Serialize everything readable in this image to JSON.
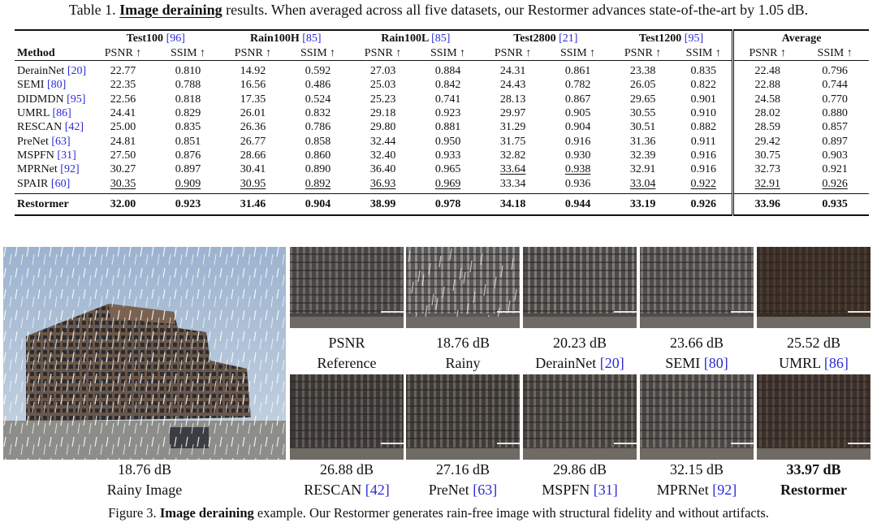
{
  "table_caption": {
    "prefix": "Table 1.",
    "bold": "Image deraining",
    "rest": "results. When averaged across all five datasets, our Restormer advances state-of-the-art by 1.05 dB."
  },
  "table": {
    "method_header": "Method",
    "metric_headers": [
      "PSNR ↑",
      "SSIM ↑"
    ],
    "datasets": [
      {
        "name": "Test100",
        "ref": "[96]"
      },
      {
        "name": "Rain100H",
        "ref": "[85]"
      },
      {
        "name": "Rain100L",
        "ref": "[85]"
      },
      {
        "name": "Test2800",
        "ref": "[21]"
      },
      {
        "name": "Test1200",
        "ref": "[95]"
      },
      {
        "name": "Average",
        "ref": ""
      }
    ],
    "rows": [
      {
        "name": "DerainNet",
        "ref": "[20]",
        "values": [
          "22.77",
          "0.810",
          "14.92",
          "0.592",
          "27.03",
          "0.884",
          "24.31",
          "0.861",
          "23.38",
          "0.835",
          "22.48",
          "0.796"
        ],
        "underline": []
      },
      {
        "name": "SEMI",
        "ref": "[80]",
        "values": [
          "22.35",
          "0.788",
          "16.56",
          "0.486",
          "25.03",
          "0.842",
          "24.43",
          "0.782",
          "26.05",
          "0.822",
          "22.88",
          "0.744"
        ],
        "underline": []
      },
      {
        "name": "DIDMDN",
        "ref": "[95]",
        "values": [
          "22.56",
          "0.818",
          "17.35",
          "0.524",
          "25.23",
          "0.741",
          "28.13",
          "0.867",
          "29.65",
          "0.901",
          "24.58",
          "0.770"
        ],
        "underline": []
      },
      {
        "name": "UMRL",
        "ref": "[86]",
        "values": [
          "24.41",
          "0.829",
          "26.01",
          "0.832",
          "29.18",
          "0.923",
          "29.97",
          "0.905",
          "30.55",
          "0.910",
          "28.02",
          "0.880"
        ],
        "underline": []
      },
      {
        "name": "RESCAN",
        "ref": "[42]",
        "values": [
          "25.00",
          "0.835",
          "26.36",
          "0.786",
          "29.80",
          "0.881",
          "31.29",
          "0.904",
          "30.51",
          "0.882",
          "28.59",
          "0.857"
        ],
        "underline": []
      },
      {
        "name": "PreNet",
        "ref": "[63]",
        "values": [
          "24.81",
          "0.851",
          "26.77",
          "0.858",
          "32.44",
          "0.950",
          "31.75",
          "0.916",
          "31.36",
          "0.911",
          "29.42",
          "0.897"
        ],
        "underline": []
      },
      {
        "name": "MSPFN",
        "ref": "[31]",
        "values": [
          "27.50",
          "0.876",
          "28.66",
          "0.860",
          "32.40",
          "0.933",
          "32.82",
          "0.930",
          "32.39",
          "0.916",
          "30.75",
          "0.903"
        ],
        "underline": []
      },
      {
        "name": "MPRNet",
        "ref": "[92]",
        "values": [
          "30.27",
          "0.897",
          "30.41",
          "0.890",
          "36.40",
          "0.965",
          "33.64",
          "0.938",
          "32.91",
          "0.916",
          "32.73",
          "0.921"
        ],
        "underline": [
          6,
          7
        ]
      },
      {
        "name": "SPAIR",
        "ref": "[60]",
        "values": [
          "30.35",
          "0.909",
          "30.95",
          "0.892",
          "36.93",
          "0.969",
          "33.34",
          "0.936",
          "33.04",
          "0.922",
          "32.91",
          "0.926"
        ],
        "underline": [
          0,
          1,
          2,
          3,
          4,
          5,
          8,
          9,
          10,
          11
        ]
      }
    ],
    "ours": {
      "name": "Restormer",
      "values": [
        "32.00",
        "0.923",
        "31.46",
        "0.904",
        "38.99",
        "0.978",
        "34.18",
        "0.944",
        "33.19",
        "0.926",
        "33.96",
        "0.935"
      ]
    }
  },
  "figure": {
    "large": {
      "psnr": "18.76 dB",
      "label": "Rainy Image",
      "ref": "",
      "bold": false
    },
    "top_row": [
      {
        "psnr": "PSNR",
        "label": "Reference",
        "ref": "",
        "bold": false
      },
      {
        "psnr": "18.76 dB",
        "label": "Rainy",
        "ref": "",
        "bold": false
      },
      {
        "psnr": "20.23 dB",
        "label": "DerainNet",
        "ref": "[20]",
        "bold": false
      },
      {
        "psnr": "23.66 dB",
        "label": "SEMI",
        "ref": "[80]",
        "bold": false
      },
      {
        "psnr": "25.52 dB",
        "label": "UMRL",
        "ref": "[86]",
        "bold": false
      }
    ],
    "bottom_row": [
      {
        "psnr": "26.88 dB",
        "label": "RESCAN",
        "ref": "[42]",
        "bold": false
      },
      {
        "psnr": "27.16 dB",
        "label": "PreNet",
        "ref": "[63]",
        "bold": false
      },
      {
        "psnr": "29.86 dB",
        "label": "MSPFN",
        "ref": "[31]",
        "bold": false
      },
      {
        "psnr": "32.15 dB",
        "label": "MPRNet",
        "ref": "[92]",
        "bold": false
      },
      {
        "psnr": "33.97 dB",
        "label": "Restormer",
        "ref": "",
        "bold": true
      }
    ]
  },
  "figure_caption": {
    "prefix": "Figure 3.",
    "bold": "Image deraining",
    "rest": "example. Our Restormer generates rain-free image with structural fidelity and without artifacts."
  }
}
